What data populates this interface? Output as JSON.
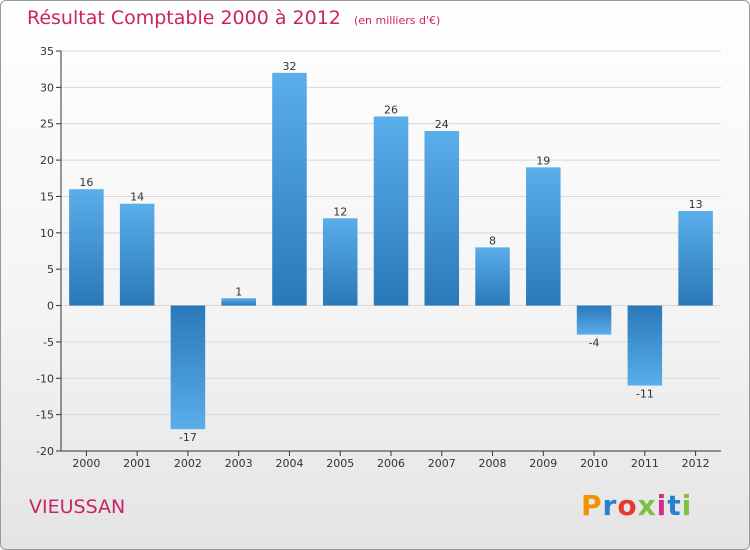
{
  "header": {
    "title": "Résultat Comptable 2000 à 2012",
    "subtitle": "(en milliers d'€)"
  },
  "footer": {
    "commune": "VIEUSSAN",
    "brand": "Proxiti",
    "brand_colors": [
      "#f39200",
      "#2a7fd4",
      "#e63a2e",
      "#7cc142",
      "#d22d8a",
      "#2a7fd4",
      "#7cc142"
    ]
  },
  "colors": {
    "bar_light": "#5aaeea",
    "bar_dark": "#2a78b8",
    "title": "#cc2266",
    "grid": "#d8d8d8"
  },
  "chart_data": {
    "type": "bar",
    "title": "Résultat Comptable 2000 à 2012",
    "subtitle": "(en milliers d'€)",
    "xlabel": "",
    "ylabel": "",
    "categories": [
      "2000",
      "2001",
      "2002",
      "2003",
      "2004",
      "2005",
      "2006",
      "2007",
      "2008",
      "2009",
      "2010",
      "2011",
      "2012"
    ],
    "values": [
      16,
      14,
      -17,
      1,
      32,
      12,
      26,
      24,
      8,
      19,
      -4,
      -11,
      13
    ],
    "value_labels": [
      "16",
      "14",
      "-17",
      "1",
      "32",
      "12",
      "26",
      "24",
      "8",
      "19",
      "-4",
      "-11",
      "13"
    ],
    "ylim": [
      -20,
      35
    ],
    "yticks": [
      -20,
      -15,
      -10,
      -5,
      0,
      5,
      10,
      15,
      20,
      25,
      30,
      35
    ],
    "ytick_labels": [
      "-20",
      "-15",
      "-10",
      "-5",
      "0",
      "5",
      "10",
      "15",
      "20",
      "25",
      "30",
      "35"
    ],
    "grid": true
  }
}
